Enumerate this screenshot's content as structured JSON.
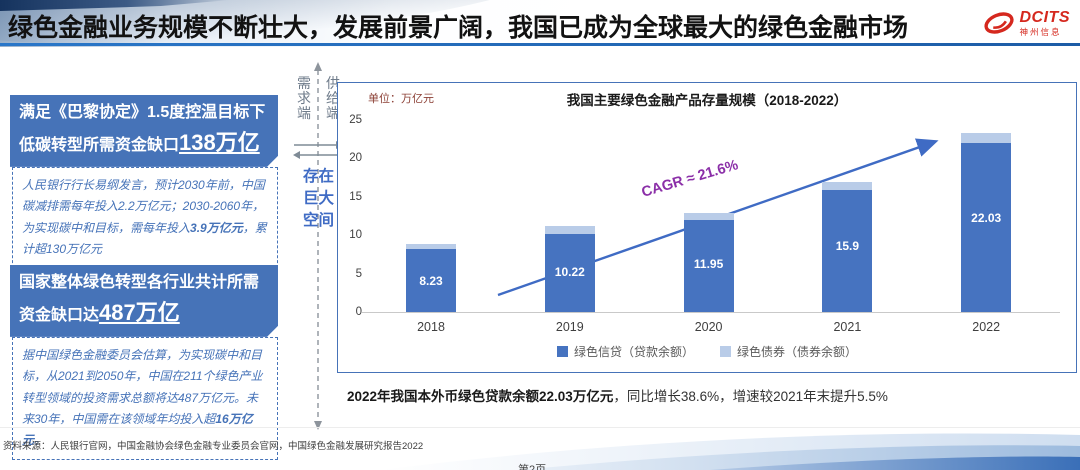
{
  "header": {
    "title": "绿色金融业务规模不断壮大，发展前景广阔，我国已成为全球最大的绿色金融市场",
    "logo": {
      "brand": "DCITS",
      "company": "神州信息",
      "color": "#d5281e"
    }
  },
  "left_panel": {
    "boxes": [
      {
        "heading_prefix": "满足《巴黎协定》1.5度控温目标下低碳转型所需资金缺口",
        "heading_number": "138万亿",
        "body_parts": [
          "人民银行行长易纲发言，预计2030年前，中国碳减排需每年投入2.2万亿元；2030-2060年，为实现碳中和目标，需每年投入",
          "3.9万亿元",
          "，累计超130万亿元"
        ]
      },
      {
        "heading_prefix": "国家整体绿色转型各行业共计所需资金缺口达",
        "heading_number": "487万亿",
        "body_parts": [
          "据中国绿色金融委员会估算，为实现碳中和目标，从2021到2050年，中国在211个绿色产业转型领域的投资需求总额将达487万亿元。未来30年，中国需在该领域年均投入超",
          "16万亿元",
          "。"
        ]
      }
    ]
  },
  "divider": {
    "left_label": "需求端",
    "right_label": "供给端",
    "gap_label": "存在巨大空间"
  },
  "chart_data": {
    "type": "bar",
    "stacked": true,
    "title": "我国主要绿色金融产品存量规模（2018-2022）",
    "unit_label": "单位：万亿元",
    "categories": [
      "2018",
      "2019",
      "2020",
      "2021",
      "2022"
    ],
    "series": [
      {
        "name": "绿色信贷（贷款余额）",
        "color": "#4673c0",
        "values": [
          8.23,
          10.22,
          11.95,
          15.9,
          22.03
        ],
        "labels": [
          "8.23",
          "10.22",
          "11.95",
          "15.9",
          "22.03"
        ]
      },
      {
        "name": "绿色债券（债券余额）",
        "color": "#b9cce8",
        "values": [
          0.62,
          1.0,
          0.95,
          1.1,
          1.3
        ]
      }
    ],
    "ylim": [
      0,
      25
    ],
    "yticks": [
      0,
      5,
      10,
      15,
      20,
      25
    ],
    "gridlines": false,
    "legend_position": "bottom",
    "annotation": {
      "text": "CAGR ≈ 21.6%",
      "color": "#8b2fa8"
    }
  },
  "chart_footnote": {
    "bold": "2022年我国本外币绿色贷款余额22.03万亿元",
    "rest": "，同比增长38.6%，增速较2021年末提升5.5%"
  },
  "footer": {
    "source": "资料来源：人民银行官网，中国金融协会绿色金融专业委员会官网，中国绿色金融发展研究报告2022",
    "page": "第2页"
  }
}
